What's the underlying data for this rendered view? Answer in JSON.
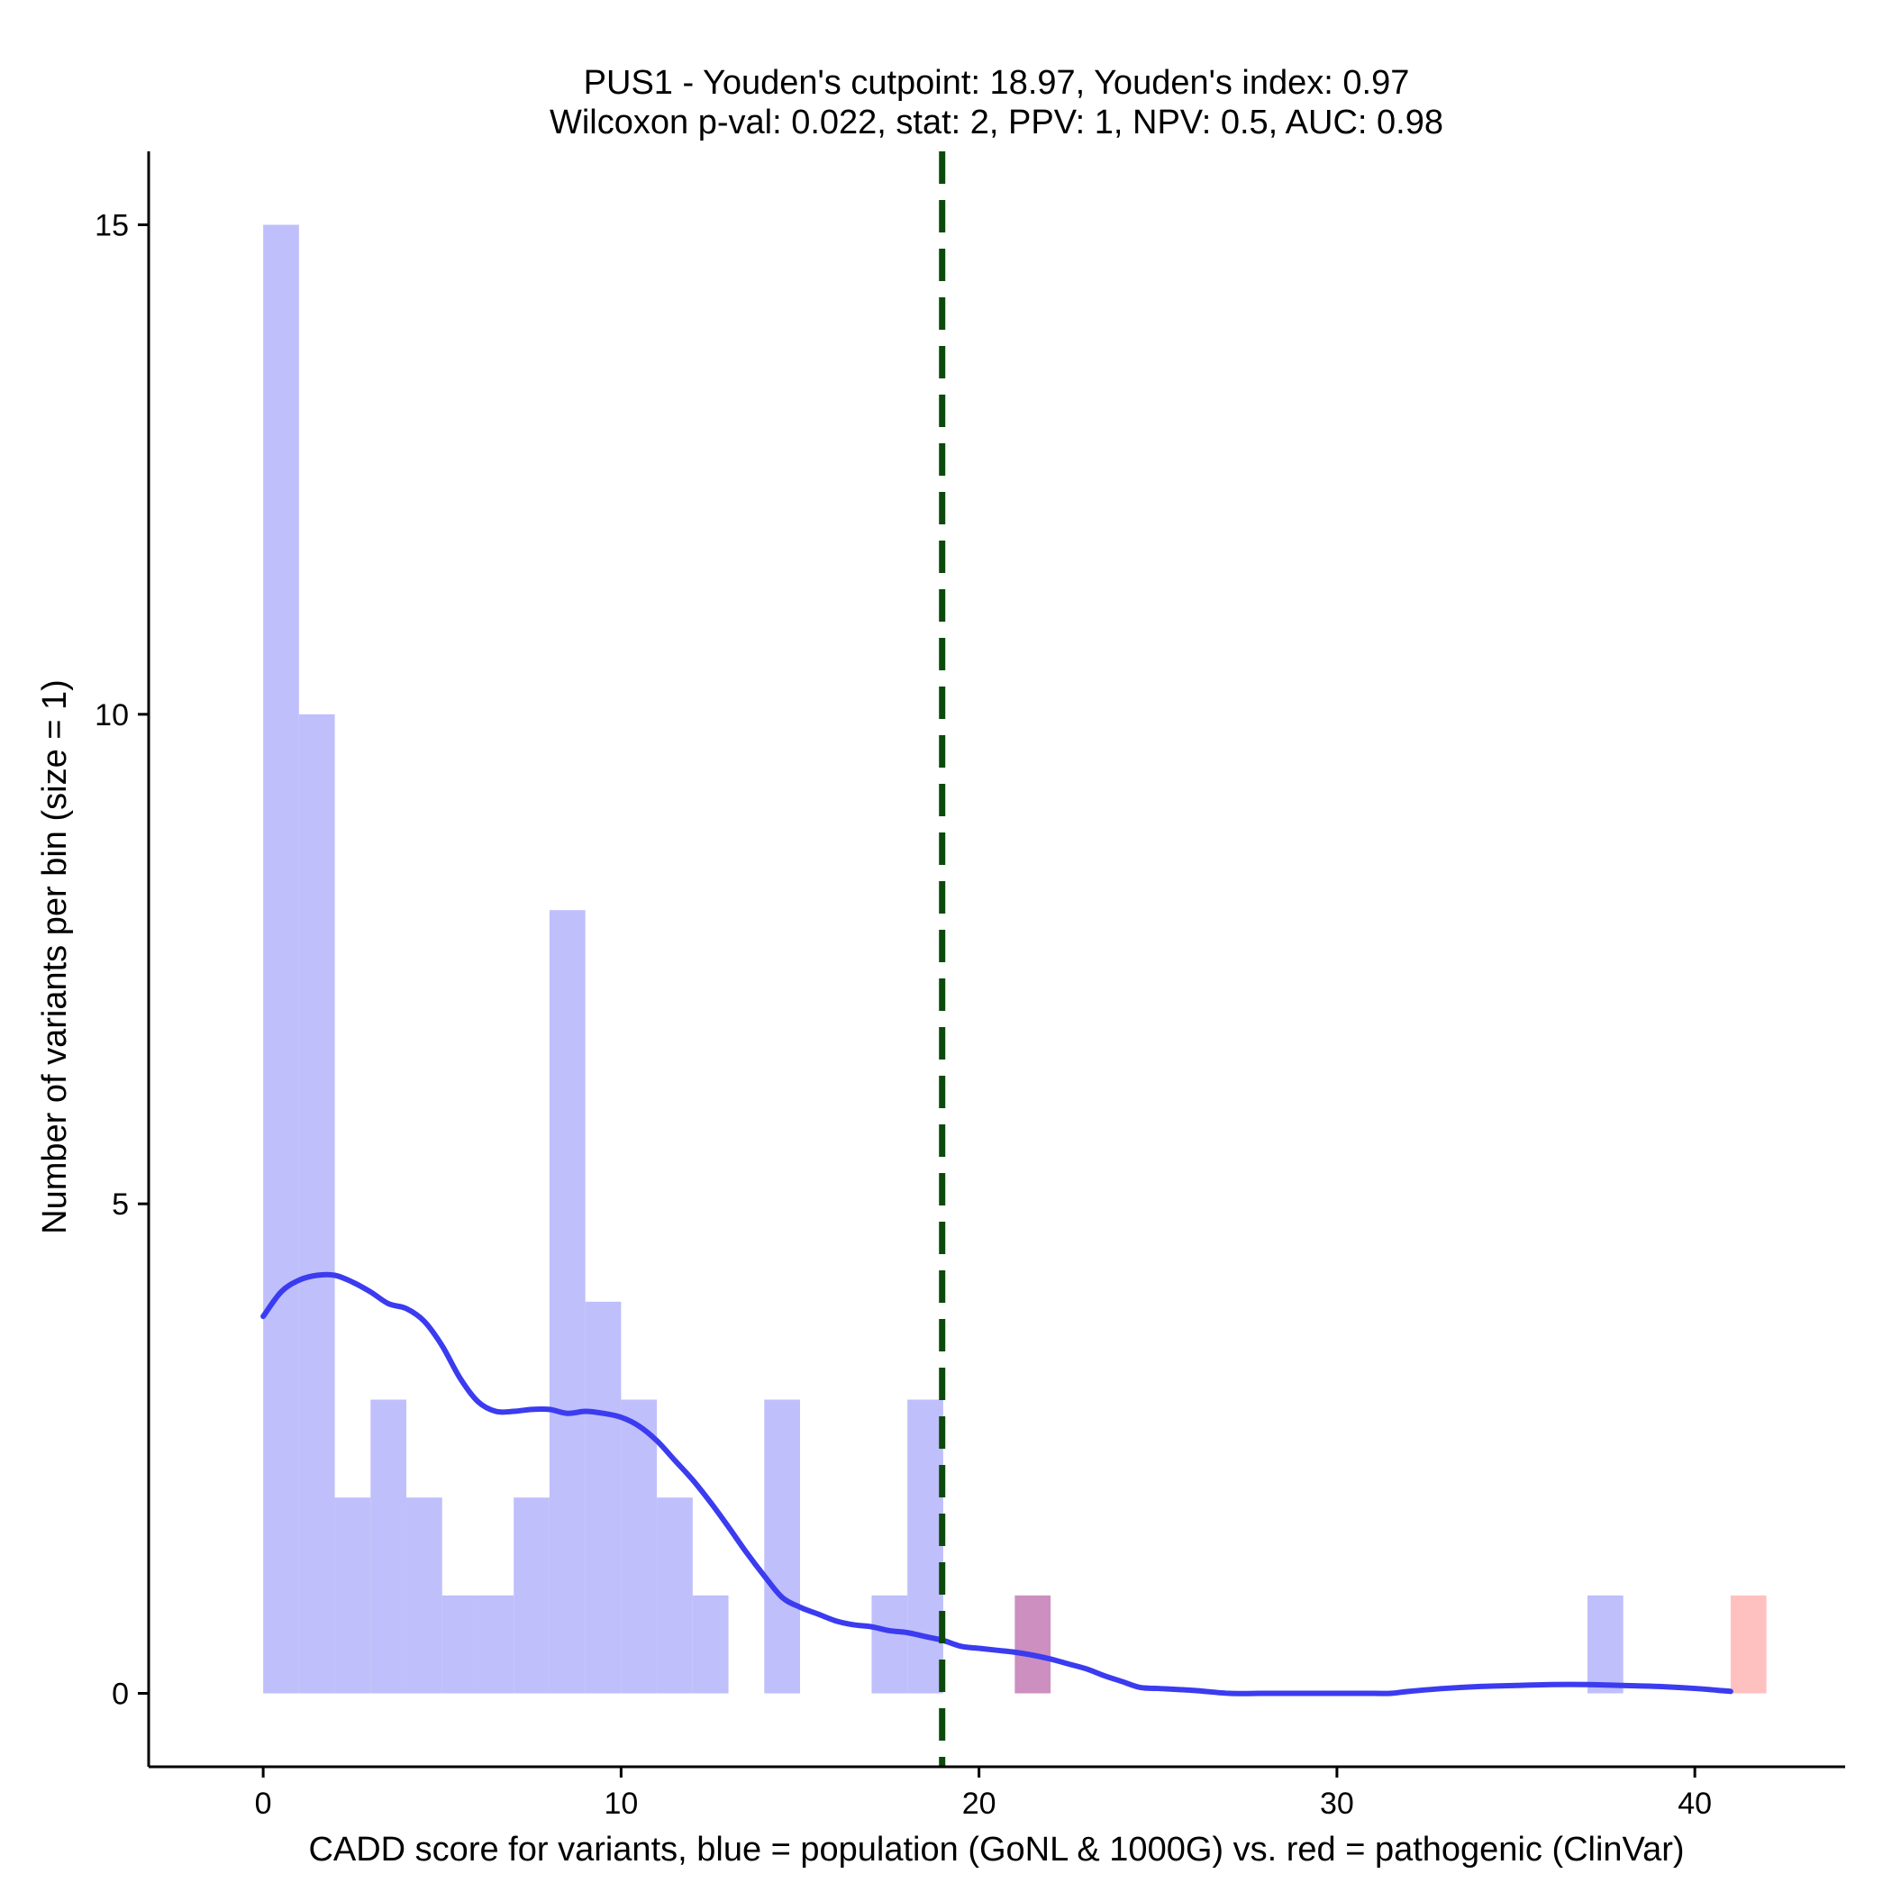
{
  "chart_data": {
    "type": "histogram",
    "title": "PUS1 - Youden's cutpoint: 18.97, Youden's index: 0.97",
    "subtitle": "Wilcoxon p-val: 0.022, stat: 2, PPV: 1, NPV: 0.5, AUC: 0.98",
    "xlabel": "CADD score for variants, blue = population (GoNL & 1000G) vs. red = pathogenic (ClinVar)",
    "ylabel": "Number of variants per bin (size = 1)",
    "xlim": [
      -3.2,
      44.2
    ],
    "ylim": [
      -0.75,
      15.75
    ],
    "x_ticks": [
      0,
      10,
      20,
      30,
      40
    ],
    "y_ticks": [
      0,
      5,
      10,
      15
    ],
    "bin_size": 1,
    "cutpoint": 18.97,
    "series": [
      {
        "name": "population (GoNL & 1000G)",
        "color": "#BFBFFB",
        "bins": [
          {
            "x0": 0,
            "count": 15
          },
          {
            "x0": 1,
            "count": 10
          },
          {
            "x0": 2,
            "count": 2
          },
          {
            "x0": 3,
            "count": 3
          },
          {
            "x0": 4,
            "count": 2
          },
          {
            "x0": 5,
            "count": 1
          },
          {
            "x0": 6,
            "count": 1
          },
          {
            "x0": 7,
            "count": 2
          },
          {
            "x0": 8,
            "count": 8
          },
          {
            "x0": 9,
            "count": 4
          },
          {
            "x0": 10,
            "count": 3
          },
          {
            "x0": 11,
            "count": 2
          },
          {
            "x0": 12,
            "count": 1
          },
          {
            "x0": 14,
            "count": 3
          },
          {
            "x0": 17,
            "count": 1
          },
          {
            "x0": 18,
            "count": 3
          },
          {
            "x0": 21,
            "count": 1
          },
          {
            "x0": 37,
            "count": 1
          }
        ]
      },
      {
        "name": "pathogenic (ClinVar)",
        "color": "#FFC0C0",
        "bins": [
          {
            "x0": 21,
            "count": 1
          },
          {
            "x0": 41,
            "count": 1
          }
        ]
      }
    ],
    "overlap_color": "#CC8FC0",
    "density_curve": {
      "color": "#3B3BF0",
      "points": [
        [
          0,
          3.85
        ],
        [
          0.5,
          4.1
        ],
        [
          1,
          4.22
        ],
        [
          1.5,
          4.27
        ],
        [
          2,
          4.27
        ],
        [
          2.5,
          4.2
        ],
        [
          3,
          4.1
        ],
        [
          3.5,
          3.98
        ],
        [
          4,
          3.93
        ],
        [
          4.5,
          3.8
        ],
        [
          5,
          3.55
        ],
        [
          5.5,
          3.22
        ],
        [
          6,
          2.98
        ],
        [
          6.5,
          2.88
        ],
        [
          7,
          2.88
        ],
        [
          7.5,
          2.9
        ],
        [
          8,
          2.9
        ],
        [
          8.5,
          2.86
        ],
        [
          9,
          2.88
        ],
        [
          9.5,
          2.86
        ],
        [
          10,
          2.82
        ],
        [
          10.5,
          2.73
        ],
        [
          11,
          2.58
        ],
        [
          11.5,
          2.38
        ],
        [
          12,
          2.18
        ],
        [
          12.5,
          1.95
        ],
        [
          13,
          1.7
        ],
        [
          13.5,
          1.44
        ],
        [
          14,
          1.2
        ],
        [
          14.5,
          0.98
        ],
        [
          15,
          0.88
        ],
        [
          15.5,
          0.81
        ],
        [
          16,
          0.74
        ],
        [
          16.5,
          0.7
        ],
        [
          17,
          0.68
        ],
        [
          17.5,
          0.64
        ],
        [
          18,
          0.62
        ],
        [
          18.5,
          0.58
        ],
        [
          19,
          0.54
        ],
        [
          19.5,
          0.48
        ],
        [
          20,
          0.46
        ],
        [
          20.5,
          0.44
        ],
        [
          21,
          0.42
        ],
        [
          21.5,
          0.39
        ],
        [
          22,
          0.35
        ],
        [
          22.5,
          0.3
        ],
        [
          23,
          0.25
        ],
        [
          23.5,
          0.18
        ],
        [
          24,
          0.12
        ],
        [
          24.5,
          0.06
        ],
        [
          25,
          0.05
        ],
        [
          26,
          0.03
        ],
        [
          27,
          0
        ],
        [
          28,
          0
        ],
        [
          29,
          0
        ],
        [
          30,
          0
        ],
        [
          31,
          0
        ],
        [
          31.5,
          0
        ],
        [
          32,
          0.02
        ],
        [
          33,
          0.05
        ],
        [
          34,
          0.07
        ],
        [
          35,
          0.08
        ],
        [
          36,
          0.09
        ],
        [
          37,
          0.09
        ],
        [
          38,
          0.08
        ],
        [
          39,
          0.07
        ],
        [
          40,
          0.05
        ],
        [
          41,
          0.02
        ]
      ]
    }
  }
}
